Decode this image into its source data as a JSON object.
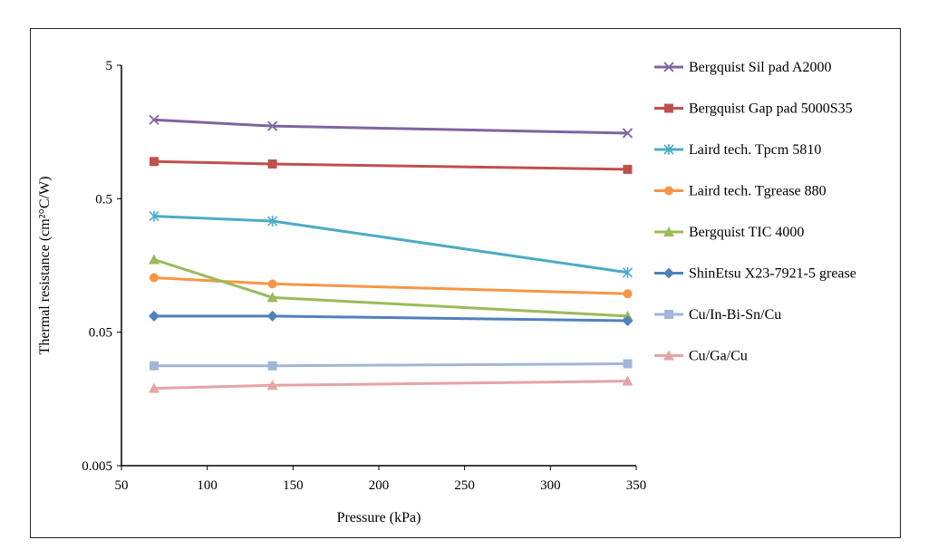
{
  "chart_data": {
    "type": "line",
    "title": "",
    "xlabel": "Pressure (kPa)",
    "ylabel": "Thermal resistance (cm²°C/W)",
    "x_ticks": [
      "50",
      "100",
      "150",
      "200",
      "250",
      "300",
      "350"
    ],
    "y_ticks": [
      "5",
      "0.5",
      "0.05",
      "0.005"
    ],
    "xlim": [
      50,
      350
    ],
    "ylim": [
      0.005,
      5
    ],
    "y_scale": "log",
    "grid": false,
    "legend_position": "right",
    "series": [
      {
        "name": "Bergquist Sil pad A2000",
        "color": "#8064a2",
        "marker": "x",
        "x": [
          69,
          138,
          345
        ],
        "y": [
          1.95,
          1.75,
          1.55
        ]
      },
      {
        "name": "Bergquist Gap pad 5000S35",
        "color": "#c0504d",
        "marker": "square",
        "x": [
          69,
          138,
          345
        ],
        "y": [
          0.95,
          0.91,
          0.83
        ]
      },
      {
        "name": "Laird tech. Tpcm 5810",
        "color": "#4bacc6",
        "marker": "asterisk",
        "x": [
          69,
          138,
          345
        ],
        "y": [
          0.37,
          0.34,
          0.14
        ]
      },
      {
        "name": "Laird tech. Tgrease 880",
        "color": "#f79646",
        "marker": "circle",
        "x": [
          69,
          138,
          345
        ],
        "y": [
          0.128,
          0.115,
          0.097
        ]
      },
      {
        "name": "Bergquist TIC 4000",
        "color": "#9bbb59",
        "marker": "triangle",
        "x": [
          69,
          138,
          345
        ],
        "y": [
          0.175,
          0.091,
          0.066
        ]
      },
      {
        "name": "ShinEtsu X23-7921-5 grease",
        "color": "#4f81bd",
        "marker": "diamond",
        "x": [
          69,
          138,
          345
        ],
        "y": [
          0.066,
          0.066,
          0.061
        ]
      },
      {
        "name": "Cu/In-Bi-Sn/Cu",
        "color": "#a2b6d8",
        "marker": "square",
        "x": [
          69,
          138,
          345
        ],
        "y": [
          0.028,
          0.028,
          0.029
        ]
      },
      {
        "name": "Cu/Ga/Cu",
        "color": "#e6a3a3",
        "marker": "triangle",
        "x": [
          69,
          138,
          345
        ],
        "y": [
          0.019,
          0.02,
          0.0215
        ]
      }
    ]
  }
}
